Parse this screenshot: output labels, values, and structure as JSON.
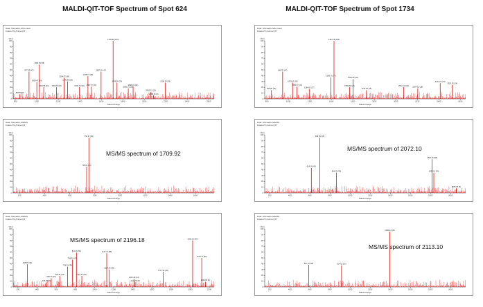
{
  "columns": {
    "left_title": "MALDI-QIT-TOF Spectrum of Spot 624",
    "right_title": "MALDI-QIT-TOF Spectrum of Spot 1734"
  },
  "chart_data": [
    {
      "id": "spot624-ms",
      "type": "bar",
      "title": "",
      "xlabel": "Mass/Charge",
      "ylabel": "%Int.",
      "xlim": [
        780,
        2650
      ],
      "ylim": [
        0,
        100
      ],
      "x_ticks": [
        800,
        1000,
        1200,
        1400,
        1600,
        1800,
        2000,
        2200,
        2400,
        2600
      ],
      "y_ticks": [
        0,
        10,
        20,
        30,
        40,
        50,
        60,
        70,
        80,
        90,
        100
      ],
      "peaks": [
        {
          "x": 842.5,
          "y": 8,
          "label": "842.50"
        },
        {
          "x": 927.5,
          "y": 47,
          "label": "927.50"
        },
        {
          "x": 1000.47,
          "y": 29,
          "label": "1000.47"
        },
        {
          "x": 1023.54,
          "y": 59,
          "label": "1023.54"
        },
        {
          "x": 1064.56,
          "y": 20,
          "label": "1064.56"
        },
        {
          "x": 1183.6,
          "y": 20,
          "label": "1183.60"
        },
        {
          "x": 1254.67,
          "y": 36,
          "label": "1254.67"
        },
        {
          "x": 1286.66,
          "y": 30,
          "label": "1286.66"
        },
        {
          "x": 1396.73,
          "y": 20,
          "label": "1396.73"
        },
        {
          "x": 1475.74,
          "y": 39,
          "label": "1475.74"
        },
        {
          "x": 1507.77,
          "y": 21,
          "label": "1507.77"
        },
        {
          "x": 1597.82,
          "y": 47,
          "label": "1597.82"
        },
        {
          "x": 1709.92,
          "y": 100,
          "label": "1709.92"
        },
        {
          "x": 1745.9,
          "y": 28,
          "label": "1745.90"
        },
        {
          "x": 1851.01,
          "y": 18,
          "label": "1851.01"
        },
        {
          "x": 1896.01,
          "y": 21,
          "label": "1896.01"
        },
        {
          "x": 2062.12,
          "y": 12,
          "label": "2062.12"
        },
        {
          "x": 2088.15,
          "y": 6,
          "label": "2088.15"
        },
        {
          "x": 2196.18,
          "y": 28,
          "label": "2196.18"
        }
      ]
    },
    {
      "id": "spot1734-ms",
      "type": "bar",
      "title": "",
      "xlabel": "Mass/Charge",
      "ylabel": "%Int.",
      "xlim": [
        780,
        2650
      ],
      "ylim": [
        0,
        100
      ],
      "x_ticks": [
        800,
        1000,
        1200,
        1400,
        1600,
        1800,
        2000,
        2200,
        2400,
        2600
      ],
      "y_ticks": [
        0,
        10,
        20,
        30,
        40,
        50,
        60,
        70,
        80,
        90,
        100
      ],
      "peaks": [
        {
          "x": 842.5,
          "y": 15,
          "label": "842.50"
        },
        {
          "x": 946.52,
          "y": 47,
          "label": "946.52"
        },
        {
          "x": 1039.61,
          "y": 28,
          "label": "1039.61"
        },
        {
          "x": 1080.57,
          "y": 21,
          "label": "1080.57"
        },
        {
          "x": 1194.63,
          "y": 17,
          "label": "1194.63"
        },
        {
          "x": 1395.73,
          "y": 37,
          "label": "1395.73"
        },
        {
          "x": 1424.78,
          "y": 100,
          "label": "1424.78"
        },
        {
          "x": 1569.81,
          "y": 20,
          "label": "1569.81"
        },
        {
          "x": 1601.83,
          "y": 34,
          "label": "1601.83"
        },
        {
          "x": 1726.91,
          "y": 15,
          "label": "1726.91"
        },
        {
          "x": 2072.1,
          "y": 20,
          "label": "2072.10"
        },
        {
          "x": 2204.12,
          "y": 18,
          "label": "2204.12"
        },
        {
          "x": 2413.24,
          "y": 27,
          "label": "2413.24"
        },
        {
          "x": 2525.3,
          "y": 24,
          "label": "2525.30"
        }
      ]
    },
    {
      "id": "msms-1709",
      "type": "bar",
      "title": "MS/MS spectrum of 1709.92",
      "xlabel": "Mass/Charge",
      "ylabel": "%Int.",
      "xlim": [
        150,
        1750
      ],
      "ylim": [
        0,
        100
      ],
      "x_ticks": [
        200,
        400,
        600,
        800,
        1000,
        1200,
        1400,
        1600
      ],
      "y_ticks": [
        0,
        10,
        20,
        30,
        40,
        50,
        60,
        70,
        80,
        90,
        100
      ],
      "peaks": [
        {
          "x": 752.97,
          "y": 95,
          "label": "752.97"
        },
        {
          "x": 735.03,
          "y": 45,
          "label": "735.03"
        }
      ]
    },
    {
      "id": "msms-2072",
      "type": "bar",
      "title": "MS/MS spectrum of 2072.10",
      "xlabel": "Mass/Charge",
      "ylabel": "%Int.",
      "xlim": [
        150,
        2150
      ],
      "ylim": [
        0,
        100
      ],
      "x_ticks": [
        200,
        400,
        600,
        800,
        1000,
        1200,
        1400,
        1600,
        1800,
        2000
      ],
      "y_ticks": [
        0,
        10,
        20,
        30,
        40,
        50,
        60,
        70,
        80,
        90,
        100
      ],
      "peaks": [
        {
          "x": 614.18,
          "y": 43,
          "label": "614.18"
        },
        {
          "x": 698.59,
          "y": 95,
          "label": "698.59"
        },
        {
          "x": 864.22,
          "y": 35,
          "label": "864.22"
        },
        {
          "x": 1816.16,
          "y": 58,
          "label": "1816.16"
        },
        {
          "x": 1833.12,
          "y": 35,
          "label": "1833.12"
        },
        {
          "x": 2056.83,
          "y": 8,
          "label": "2056.83"
        }
      ]
    },
    {
      "id": "msms-2196",
      "type": "bar",
      "title": "MS/MS spectrum of 2196.18",
      "xlabel": "Mass/Charge",
      "ylabel": "%Int.",
      "xlim": [
        150,
        2250
      ],
      "ylim": [
        0,
        100
      ],
      "x_ticks": [
        200,
        400,
        600,
        800,
        1000,
        1200,
        1400,
        1600,
        1800,
        2000,
        2200
      ],
      "y_ticks": [
        0,
        10,
        20,
        30,
        40,
        50,
        60,
        70,
        80,
        90,
        100
      ],
      "peaks": [
        {
          "x": 298.15,
          "y": 39,
          "label": "298.15"
        },
        {
          "x": 496.28,
          "y": 8,
          "label": "496.28"
        },
        {
          "x": 548.1,
          "y": 15,
          "label": "548.10"
        },
        {
          "x": 636.91,
          "y": 19,
          "label": "636.91"
        },
        {
          "x": 718.29,
          "y": 35,
          "label": "718.29"
        },
        {
          "x": 768.3,
          "y": 47,
          "label": "768.30"
        },
        {
          "x": 811.36,
          "y": 59,
          "label": "811.36"
        },
        {
          "x": 867.41,
          "y": 19,
          "label": "867.41"
        },
        {
          "x": 1127.71,
          "y": 58,
          "label": "1127.71"
        },
        {
          "x": 1154.3,
          "y": 30,
          "label": "1154.30"
        },
        {
          "x": 1412.3,
          "y": 14,
          "label": "1412.30"
        },
        {
          "x": 1424.7,
          "y": 8,
          "label": "1424.70"
        },
        {
          "x": 1717.91,
          "y": 26,
          "label": "1717.91"
        },
        {
          "x": 2025.1,
          "y": 80,
          "label": "2025.10"
        },
        {
          "x": 2120.71,
          "y": 50,
          "label": "2120.71"
        },
        {
          "x": 2159.0,
          "y": 9,
          "label": "2159.00"
        }
      ]
    },
    {
      "id": "msms-2113",
      "type": "bar",
      "title": "MS/MS spectrum of 2113.10",
      "xlabel": "Mass/Charge",
      "ylabel": "%Int.",
      "xlim": [
        150,
        2150
      ],
      "ylim": [
        0,
        100
      ],
      "x_ticks": [
        200,
        400,
        600,
        800,
        1000,
        1200,
        1400,
        1600,
        1800,
        2000
      ],
      "y_ticks": [
        0,
        10,
        20,
        30,
        40,
        50,
        60,
        70,
        80,
        90,
        100
      ],
      "peaks": [
        {
          "x": 587.19,
          "y": 38,
          "label": "587.19"
        },
        {
          "x": 914.52,
          "y": 37,
          "label": "914.52"
        },
        {
          "x": 1395.24,
          "y": 95,
          "label": "1395.24"
        }
      ]
    }
  ]
}
